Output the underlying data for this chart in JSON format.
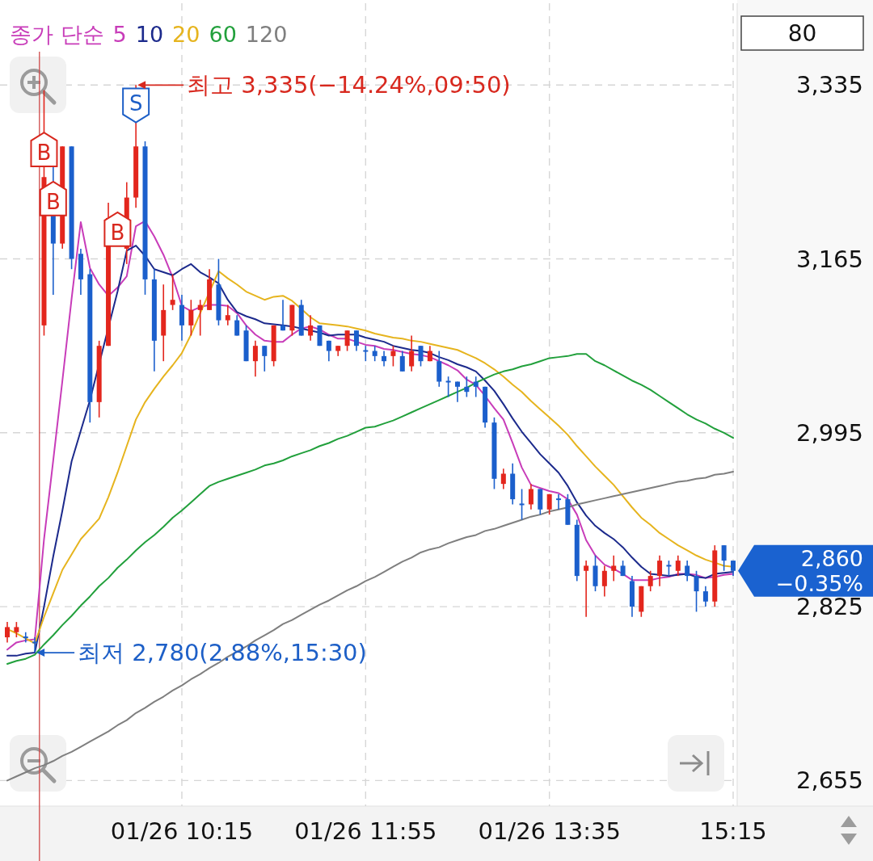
{
  "chart_data": {
    "type": "candlestick",
    "legend_title": "종가 단순",
    "legend": "top left",
    "grid": true,
    "categories": [
      null,
      null,
      null,
      null,
      null,
      null,
      null,
      null,
      null,
      null,
      null,
      null,
      null,
      null,
      null,
      null,
      null,
      null,
      null,
      "01/26 10:15",
      null,
      null,
      null,
      null,
      null,
      null,
      null,
      null,
      null,
      null,
      null,
      null,
      null,
      null,
      null,
      null,
      null,
      null,
      null,
      "01/26 11:55",
      null,
      null,
      null,
      null,
      null,
      null,
      null,
      null,
      null,
      null,
      null,
      null,
      null,
      null,
      null,
      null,
      null,
      null,
      null,
      "01/26 13:35",
      null,
      null,
      null,
      null,
      null,
      null,
      null,
      null,
      null,
      null,
      null,
      null,
      null,
      null,
      null,
      null,
      null,
      null,
      null,
      "15:15"
    ],
    "ohlc": [
      [
        2795,
        2810,
        2790,
        2805
      ],
      [
        2800,
        2810,
        2795,
        2805
      ],
      [
        2795,
        2800,
        2790,
        2795
      ],
      [
        2790,
        2795,
        2780,
        2790
      ],
      [
        3100,
        3330,
        3090,
        3245
      ],
      [
        3240,
        3255,
        3130,
        3180
      ],
      [
        3180,
        3275,
        3175,
        3275
      ],
      [
        3275,
        3275,
        3155,
        3165
      ],
      [
        3170,
        3175,
        3130,
        3145
      ],
      [
        3150,
        3155,
        3005,
        3025
      ],
      [
        3025,
        3085,
        3010,
        3080
      ],
      [
        3080,
        3220,
        3080,
        3205
      ],
      null,
      [
        3175,
        3240,
        3160,
        3225
      ],
      [
        3225,
        3335,
        3215,
        3275
      ],
      [
        3275,
        3280,
        3130,
        3145
      ],
      [
        3145,
        3155,
        3055,
        3085
      ],
      [
        3090,
        3140,
        3065,
        3115
      ],
      [
        3120,
        3150,
        3115,
        3125
      ],
      [
        3120,
        3130,
        3085,
        3100
      ],
      [
        3100,
        3125,
        3090,
        3115
      ],
      [
        3115,
        3125,
        3090,
        3120
      ],
      [
        3115,
        3155,
        3115,
        3145
      ],
      [
        3140,
        3165,
        3100,
        3105
      ],
      [
        3105,
        3120,
        3100,
        3110
      ],
      [
        3105,
        3110,
        3090,
        3090
      ],
      [
        3095,
        3100,
        3065,
        3065
      ],
      [
        3065,
        3085,
        3050,
        3080
      ],
      [
        3080,
        3080,
        3055,
        3070
      ],
      [
        3065,
        3100,
        3060,
        3100
      ],
      [
        3100,
        3125,
        3095,
        3095
      ],
      [
        3095,
        3120,
        3090,
        3120
      ],
      [
        3120,
        3125,
        3090,
        3090
      ],
      [
        3090,
        3110,
        3085,
        3100
      ],
      [
        3100,
        3100,
        3080,
        3080
      ],
      [
        3085,
        3085,
        3065,
        3075
      ],
      [
        3075,
        3080,
        3070,
        3080
      ],
      [
        3080,
        3095,
        3075,
        3095
      ],
      [
        3095,
        3095,
        3075,
        3080
      ],
      [
        3075,
        3080,
        3065,
        3075
      ],
      [
        3075,
        3080,
        3065,
        3070
      ],
      [
        3070,
        3075,
        3060,
        3065
      ],
      [
        3070,
        3080,
        3060,
        3075
      ],
      [
        3070,
        3075,
        3055,
        3055
      ],
      [
        3060,
        3090,
        3055,
        3075
      ],
      [
        3080,
        3080,
        3060,
        3065
      ],
      [
        3065,
        3080,
        3065,
        3075
      ],
      [
        3065,
        3075,
        3040,
        3045
      ],
      [
        3045,
        3050,
        3030,
        3045
      ],
      [
        3045,
        3045,
        3025,
        3040
      ],
      [
        3040,
        3050,
        3030,
        3035
      ],
      [
        3045,
        3050,
        3030,
        3040
      ],
      [
        3040,
        3040,
        3000,
        3005
      ],
      [
        3005,
        3010,
        2940,
        2950
      ],
      [
        2945,
        2960,
        2940,
        2955
      ],
      [
        2955,
        2965,
        2925,
        2930
      ],
      [
        2925,
        2940,
        2910,
        2925
      ],
      [
        2925,
        2945,
        2920,
        2940
      ],
      [
        2940,
        2940,
        2915,
        2920
      ],
      [
        2920,
        2935,
        2915,
        2935
      ],
      [
        2930,
        2935,
        2920,
        2930
      ],
      [
        2930,
        2935,
        2905,
        2905
      ],
      [
        2905,
        2910,
        2850,
        2855
      ],
      [
        2860,
        2870,
        2815,
        2865
      ],
      [
        2865,
        2875,
        2840,
        2845
      ],
      [
        2845,
        2865,
        2835,
        2860
      ],
      [
        2860,
        2875,
        2850,
        2865
      ],
      [
        2865,
        2870,
        2855,
        2855
      ],
      [
        2850,
        2855,
        2815,
        2825
      ],
      [
        2820,
        2845,
        2815,
        2845
      ],
      [
        2845,
        2860,
        2840,
        2855
      ],
      [
        2855,
        2875,
        2845,
        2870
      ],
      [
        2865,
        2870,
        2855,
        2865
      ],
      [
        2860,
        2875,
        2855,
        2870
      ],
      [
        2865,
        2870,
        2850,
        2855
      ],
      [
        2855,
        2860,
        2820,
        2840
      ],
      [
        2840,
        2845,
        2825,
        2830
      ],
      [
        2830,
        2885,
        2825,
        2880
      ],
      [
        2885,
        2885,
        2860,
        2870
      ],
      [
        2870,
        2870,
        2855,
        2860
      ]
    ],
    "colors": [
      "#e3261d",
      "#e3261d",
      "#1b5fcc",
      "#1b5fcc",
      "#e3261d",
      "#1b5fcc",
      "#e3261d",
      "#1b5fcc",
      "#1b5fcc",
      "#1b5fcc",
      "#e3261d",
      "#e3261d",
      null,
      "#e3261d",
      "#e3261d",
      "#1b5fcc",
      "#1b5fcc",
      "#e3261d",
      "#e3261d",
      "#1b5fcc",
      "#e3261d",
      "#e3261d",
      "#e3261d",
      "#1b5fcc",
      "#e3261d",
      "#1b5fcc",
      "#1b5fcc",
      "#e3261d",
      "#1b5fcc",
      "#e3261d",
      "#1b5fcc",
      "#e3261d",
      "#1b5fcc",
      "#e3261d",
      "#1b5fcc",
      "#1b5fcc",
      "#e3261d",
      "#e3261d",
      "#1b5fcc",
      "#1b5fcc",
      "#1b5fcc",
      "#1b5fcc",
      "#e3261d",
      "#1b5fcc",
      "#e3261d",
      "#1b5fcc",
      "#e3261d",
      "#1b5fcc",
      "#1b5fcc",
      "#1b5fcc",
      "#1b5fcc",
      "#1b5fcc",
      "#1b5fcc",
      "#1b5fcc",
      "#e3261d",
      "#1b5fcc",
      "#1b5fcc",
      "#e3261d",
      "#1b5fcc",
      "#e3261d",
      "#1b5fcc",
      "#1b5fcc",
      "#1b5fcc",
      "#e3261d",
      "#1b5fcc",
      "#e3261d",
      "#e3261d",
      "#1b5fcc",
      "#1b5fcc",
      "#e3261d",
      "#e3261d",
      "#e3261d",
      "#1b5fcc",
      "#e3261d",
      "#1b5fcc",
      "#1b5fcc",
      "#1b5fcc",
      "#e3261d",
      "#1b5fcc",
      "#1b5fcc"
    ],
    "series": [
      {
        "name": "5",
        "type": "line",
        "color": "#c83cb9",
        "values": [
          2783,
          2790,
          2792,
          2793,
          2891,
          2968,
          3046,
          3126,
          3201,
          3156,
          3140,
          3129,
          3137,
          3148,
          3197,
          3202,
          3187,
          3169,
          3147,
          3119,
          3114,
          3118,
          3120,
          3120,
          3119,
          3112,
          3100,
          3091,
          3085,
          3084,
          3084,
          3091,
          3097,
          3099,
          3096,
          3091,
          3087,
          3087,
          3084,
          3081,
          3080,
          3077,
          3076,
          3074,
          3072,
          3071,
          3069,
          3065,
          3061,
          3056,
          3047,
          3042,
          3031,
          3019,
          3008,
          2985,
          2961,
          2944,
          2941,
          2938,
          2936,
          2930,
          2915,
          2890,
          2875,
          2866,
          2862,
          2857,
          2851,
          2851,
          2851,
          2853,
          2854,
          2857,
          2857,
          2856,
          2853,
          2854,
          2856,
          2857
        ]
      },
      {
        "name": "10",
        "type": "line",
        "color": "#1c2a8c",
        "values": [
          2777,
          2777,
          2779,
          2780,
          2825,
          2874,
          2919,
          2967,
          2997,
          3027,
          null,
          null,
          3133,
          3173,
          3178,
          3168,
          3155,
          3152,
          3149,
          3155,
          3160,
          3152,
          3147,
          3141,
          3125,
          3113,
          3109,
          3106,
          3102,
          3101,
          3100,
          3099,
          3097,
          3095,
          3093,
          3090,
          3091,
          3091,
          3091,
          3088,
          3086,
          3084,
          3080,
          3078,
          3076,
          3075,
          3073,
          3069,
          3066,
          3062,
          3059,
          3055,
          3046,
          3036,
          3023,
          3009,
          2996,
          2985,
          2974,
          2965,
          2956,
          2943,
          2927,
          2914,
          2904,
          2897,
          2891,
          2883,
          2873,
          2864,
          2857,
          2856,
          2855,
          2856,
          2857,
          2854,
          2853,
          2857,
          2858,
          2859
        ]
      },
      {
        "name": "20",
        "type": "line",
        "color": "#e6b41e",
        "values": [
          2803,
          2799,
          2794,
          2789,
          2815,
          2838,
          2861,
          2876,
          2891,
          2901,
          2911,
          2932,
          2956,
          2982,
          3008,
          3025,
          3038,
          3050,
          3061,
          3073,
          3091,
          3112,
          null,
          3153,
          3146,
          3140,
          3133,
          3129,
          3125,
          3128,
          3129,
          3124,
          3116,
          3108,
          3102,
          3101,
          3100,
          3099,
          3097,
          3095,
          3092,
          3090,
          3088,
          3087,
          3085,
          3084,
          3082,
          3080,
          3078,
          3076,
          3072,
          3068,
          3063,
          3057,
          3050,
          3042,
          3035,
          3026,
          3018,
          3010,
          3002,
          2993,
          2982,
          2972,
          2962,
          2953,
          2944,
          2933,
          2922,
          2912,
          2905,
          2897,
          2891,
          2885,
          2880,
          2875,
          2871,
          2868,
          2865,
          2864
        ]
      },
      {
        "name": "60",
        "type": "line",
        "color": "#22a03c",
        "values": [
          2769,
          2772,
          2774,
          2778,
          2788,
          2797,
          2807,
          2816,
          2826,
          2835,
          2845,
          2853,
          2863,
          2871,
          2880,
          2888,
          2895,
          2903,
          2912,
          2919,
          2927,
          2935,
          2943,
          2947,
          2950,
          2953,
          2956,
          2959,
          2963,
          2965,
          2968,
          2972,
          2975,
          2978,
          2982,
          2985,
          2989,
          2992,
          2996,
          3000,
          3001,
          3004,
          3007,
          3011,
          3015,
          3019,
          3023,
          3027,
          3031,
          3035,
          3039,
          3044,
          3048,
          3052,
          3055,
          3057,
          3060,
          3062,
          3065,
          3068,
          3069,
          3070,
          3072,
          3072,
          3065,
          3061,
          3056,
          3051,
          3046,
          3042,
          3037,
          3031,
          3025,
          3019,
          3013,
          3008,
          3004,
          2999,
          2995,
          2990
        ]
      },
      {
        "name": "120",
        "type": "line",
        "color": "#7f7f7f",
        "values": [
          2655,
          2659,
          2663,
          2667,
          2670,
          2674,
          2679,
          2683,
          2688,
          2693,
          2698,
          2703,
          2709,
          2714,
          2721,
          2726,
          2732,
          2737,
          2743,
          2748,
          2754,
          2759,
          2765,
          2770,
          2776,
          2781,
          2786,
          2792,
          2797,
          2802,
          2808,
          2812,
          2817,
          2822,
          2827,
          2831,
          2836,
          2841,
          2845,
          2850,
          2854,
          2859,
          2864,
          2869,
          2873,
          2878,
          2881,
          2883,
          2887,
          2890,
          2893,
          2895,
          2899,
          2901,
          2904,
          2907,
          2910,
          2913,
          2915,
          2918,
          2920,
          2922,
          2925,
          2927,
          2929,
          2931,
          2933,
          2935,
          2937,
          2939,
          2941,
          2943,
          2945,
          2947,
          2948,
          2950,
          2951,
          2954,
          2955,
          2957
        ]
      },
      {
        "type": "scatter",
        "color": "#d8281e",
        "marker": "square",
        "values": [
          null,
          null,
          null,
          null,
          3272,
          3224,
          null,
          null,
          null,
          null,
          null,
          null,
          3194,
          null,
          null,
          null,
          null,
          null,
          null,
          null,
          null,
          null,
          null,
          null,
          null,
          null,
          null,
          null,
          null,
          null,
          null,
          null,
          null,
          null,
          null,
          null,
          null,
          null,
          null,
          null,
          null,
          null,
          null,
          null,
          null,
          null,
          null,
          null,
          null,
          null,
          null,
          null,
          null,
          null,
          null,
          null,
          null,
          null,
          null,
          null,
          null,
          null,
          null,
          null,
          null,
          null,
          null,
          null,
          null,
          null,
          null,
          null,
          null,
          null,
          null,
          null,
          null,
          null,
          null,
          null
        ],
        "value_labels": [
          null,
          null,
          null,
          null,
          "B",
          "B",
          null,
          null,
          null,
          null,
          null,
          null,
          "B",
          null,
          null,
          null,
          null,
          null,
          null,
          null,
          null,
          null,
          null,
          null,
          null,
          null,
          null,
          null,
          null,
          null,
          null,
          null,
          null,
          null,
          null,
          null,
          null,
          null,
          null,
          null,
          null,
          null,
          null,
          null,
          null,
          null,
          null,
          null,
          null,
          null,
          null,
          null,
          null,
          null,
          null,
          null,
          null,
          null,
          null,
          null,
          null,
          null,
          null,
          null,
          null,
          null,
          null,
          null,
          null,
          null,
          null,
          null,
          null,
          null,
          null,
          null,
          null,
          null,
          null,
          null
        ]
      },
      {
        "type": "scatter",
        "color": "#1d5fc7",
        "marker": "square",
        "values": [
          null,
          null,
          null,
          null,
          null,
          null,
          null,
          null,
          null,
          null,
          null,
          null,
          null,
          null,
          3315,
          null,
          null,
          null,
          null,
          null,
          null,
          null,
          null,
          null,
          null,
          null,
          null,
          null,
          null,
          null,
          null,
          null,
          null,
          null,
          null,
          null,
          null,
          null,
          null,
          null,
          null,
          null,
          null,
          null,
          null,
          null,
          null,
          null,
          null,
          null,
          null,
          null,
          null,
          null,
          null,
          null,
          null,
          null,
          null,
          null,
          null,
          null,
          null,
          null,
          null,
          null,
          null,
          null,
          null,
          null,
          null,
          null,
          null,
          null,
          null,
          null,
          null,
          null,
          null,
          null
        ],
        "value_labels": [
          null,
          null,
          null,
          null,
          null,
          null,
          null,
          null,
          null,
          null,
          null,
          null,
          null,
          null,
          "S",
          null,
          null,
          null,
          null,
          null,
          null,
          null,
          null,
          null,
          null,
          null,
          null,
          null,
          null,
          null,
          null,
          null,
          null,
          null,
          null,
          null,
          null,
          null,
          null,
          null,
          null,
          null,
          null,
          null,
          null,
          null,
          null,
          null,
          null,
          null,
          null,
          null,
          null,
          null,
          null,
          null,
          null,
          null,
          null,
          null,
          null,
          null,
          null,
          null,
          null,
          null,
          null,
          null,
          null,
          null,
          null,
          null,
          null,
          null,
          null,
          null,
          null,
          null,
          null,
          null
        ]
      }
    ],
    "ylim": [
      2630,
      3415
    ],
    "yticks": [
      {
        "value": 3335,
        "label": "3,335"
      },
      {
        "value": 3165,
        "label": "3,165"
      },
      {
        "value": 2995,
        "label": "2,995"
      },
      {
        "value": 2825,
        "label": "2,825"
      },
      {
        "value": 2655,
        "label": "2,655"
      }
    ],
    "annotations": [
      "최고 3,335(−14.24%,09:50)",
      "최저 2,780(2.88%,15:30)",
      "2,860",
      "−0.35%",
      "80"
    ]
  }
}
